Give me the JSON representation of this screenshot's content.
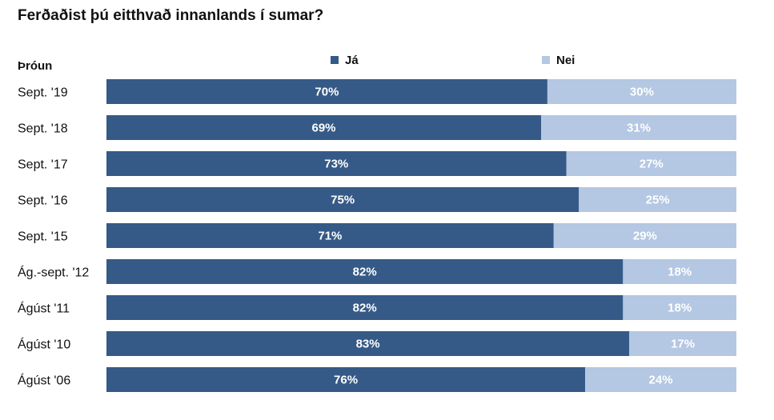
{
  "chart_data": {
    "type": "bar",
    "orientation": "horizontal",
    "stacked": true,
    "title": "Ferðaðist þú eitthvað innanlands í sumar?",
    "section_label": "Þróun",
    "categories": [
      "Sept. '19",
      "Sept. '18",
      "Sept. '17",
      "Sept. '16",
      "Sept. '15",
      "Ág.-sept. '12",
      "Ágúst '11",
      "Ágúst '10",
      "Ágúst '06"
    ],
    "series": [
      {
        "name": "Já",
        "color": "#355a87",
        "values": [
          70,
          69,
          73,
          75,
          71,
          82,
          82,
          83,
          76
        ],
        "labels": [
          "70%",
          "69%",
          "73%",
          "75%",
          "71%",
          "82%",
          "82%",
          "83%",
          "76%"
        ]
      },
      {
        "name": "Nei",
        "color": "#b4c7e3",
        "values": [
          30,
          31,
          27,
          25,
          29,
          18,
          18,
          17,
          24
        ],
        "labels": [
          "30%",
          "31%",
          "27%",
          "25%",
          "29%",
          "18%",
          "18%",
          "17%",
          "24%"
        ]
      }
    ],
    "xlim": [
      0,
      100
    ],
    "legend_position": "top",
    "grid": false
  }
}
